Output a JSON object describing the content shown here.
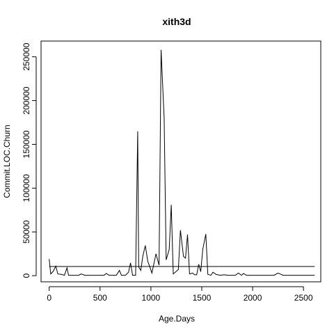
{
  "chart_data": {
    "type": "line",
    "title": "xith3d",
    "xlabel": "Age.Days",
    "ylabel": "Commit.LOC.Churn",
    "xlim": [
      -80,
      2670
    ],
    "ylim": [
      -7000,
      268000
    ],
    "x_ticks": [
      0,
      500,
      1000,
      1500,
      2000,
      2500
    ],
    "y_ticks": [
      0,
      50000,
      100000,
      150000,
      200000,
      250000
    ],
    "x_tick_labels": [
      "0",
      "500",
      "1000",
      "1500",
      "2000",
      "2500"
    ],
    "y_tick_labels": [
      "0",
      "50000",
      "100000",
      "150000",
      "200000",
      "250000"
    ],
    "grid": false,
    "legend": "none",
    "horizontal_line": {
      "y": 10500,
      "x_range": [
        0,
        2610
      ]
    },
    "series": [
      {
        "x": [
          0,
          15,
          40,
          65,
          85,
          120,
          150,
          175,
          190,
          230,
          260,
          290,
          315,
          350,
          400,
          450,
          500,
          540,
          560,
          590,
          620,
          660,
          690,
          710,
          750,
          780,
          800,
          820,
          850,
          870,
          880,
          900,
          920,
          945,
          970,
          990,
          1010,
          1050,
          1080,
          1100,
          1130,
          1150,
          1180,
          1200,
          1220,
          1250,
          1270,
          1290,
          1320,
          1340,
          1360,
          1380,
          1410,
          1430,
          1450,
          1470,
          1490,
          1510,
          1540,
          1560,
          1590,
          1610,
          1640,
          1680,
          1720,
          1760,
          1800,
          1830,
          1860,
          1890,
          1910,
          1940,
          1990,
          2050,
          2100,
          2160,
          2210,
          2250,
          2270,
          2300,
          2340,
          2400,
          2450,
          2500,
          2550,
          2610
        ],
        "y": [
          19000,
          2000,
          5000,
          11000,
          2000,
          1500,
          500,
          9000,
          500,
          500,
          500,
          500,
          2000,
          500,
          500,
          500,
          500,
          500,
          2500,
          500,
          500,
          500,
          6000,
          500,
          500,
          4000,
          14500,
          500,
          500,
          165000,
          10000,
          6000,
          22000,
          34500,
          16000,
          10000,
          3000,
          25000,
          12000,
          258000,
          180000,
          18000,
          30000,
          81000,
          2000,
          5000,
          7000,
          52000,
          22000,
          20000,
          47000,
          2000,
          3000,
          1000,
          1000,
          13000,
          4500,
          30000,
          47500,
          1500,
          500,
          4000,
          1500,
          500,
          1000,
          500,
          500,
          500,
          3000,
          500,
          2500,
          500,
          500,
          500,
          500,
          500,
          500,
          3000,
          2000,
          500,
          500,
          500,
          500,
          500,
          500,
          500
        ]
      }
    ]
  }
}
